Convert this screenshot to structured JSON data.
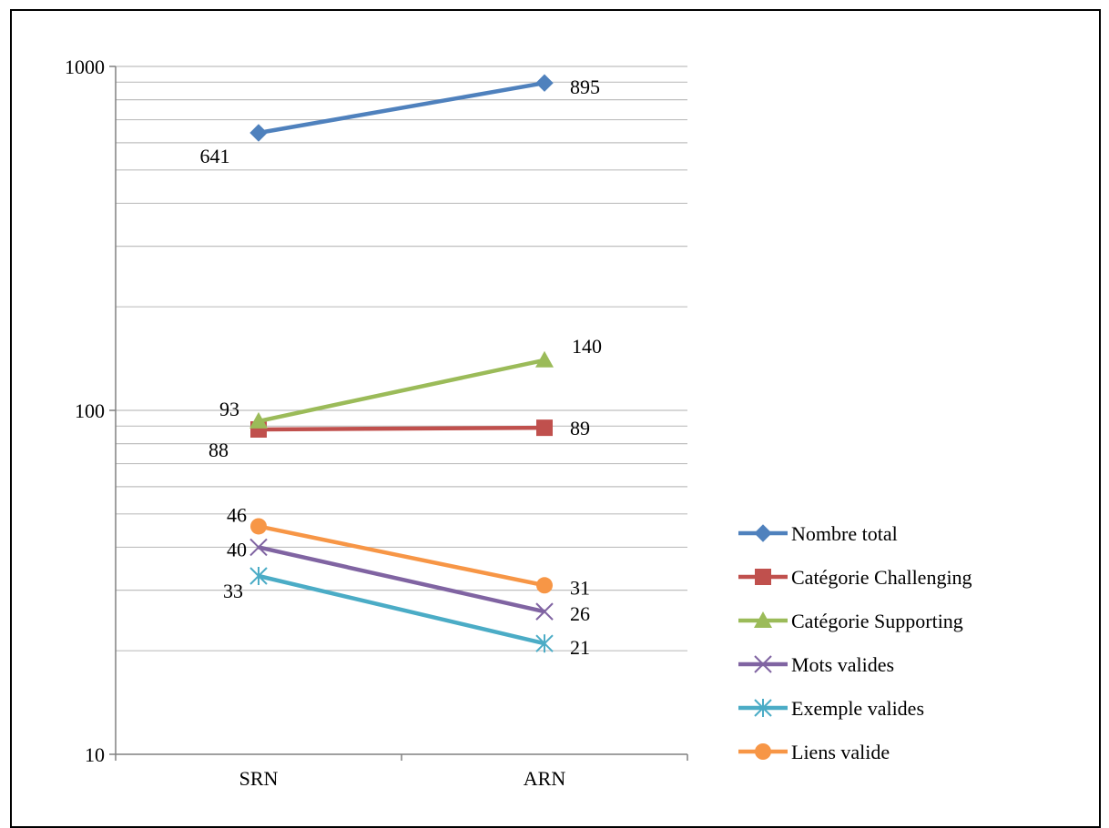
{
  "chart_data": {
    "type": "line",
    "categories": [
      "SRN",
      "ARN"
    ],
    "yscale": "log",
    "ylim": [
      10,
      1000
    ],
    "ytick_labels": [
      "10",
      "100",
      "1000"
    ],
    "grid": true,
    "legend_position": "right",
    "series": [
      {
        "name": "Nombre total",
        "values": [
          641,
          895
        ],
        "labels": [
          "641",
          "895"
        ],
        "color": "#4F81BD",
        "marker": "diamond"
      },
      {
        "name": "Catégorie Challenging",
        "values": [
          88,
          89
        ],
        "labels": [
          "88",
          "89"
        ],
        "color": "#C0504D",
        "marker": "square"
      },
      {
        "name": "Catégorie  Supporting",
        "values": [
          93,
          140
        ],
        "labels": [
          "93",
          "140"
        ],
        "color": "#9BBB59",
        "marker": "triangle"
      },
      {
        "name": "Mots valides",
        "values": [
          40,
          26
        ],
        "labels": [
          "40",
          "26"
        ],
        "color": "#8064A2",
        "marker": "x"
      },
      {
        "name": "Exemple valides",
        "values": [
          33,
          21
        ],
        "labels": [
          "33",
          "21"
        ],
        "color": "#4BACC6",
        "marker": "star"
      },
      {
        "name": "Liens valide",
        "values": [
          46,
          31
        ],
        "labels": [
          "46",
          "31"
        ],
        "color": "#F79646",
        "marker": "circle"
      }
    ]
  }
}
